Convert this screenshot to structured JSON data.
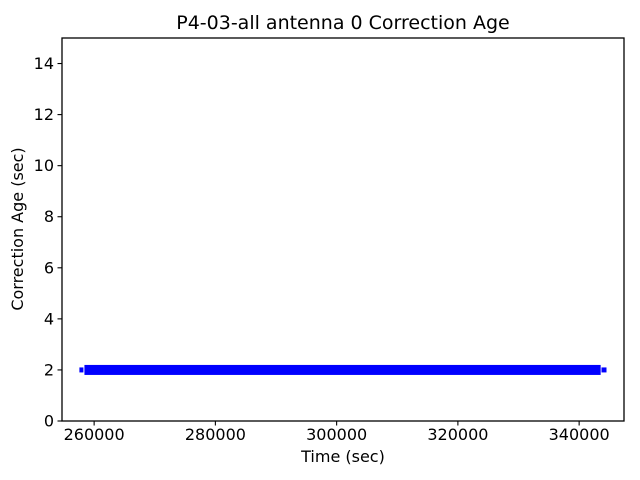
{
  "chart_data": {
    "type": "line",
    "title": "P4-03-all antenna 0 Correction Age",
    "xlabel": "Time (sec)",
    "ylabel": "Correction Age (sec)",
    "xlim": [
      254700,
      347400
    ],
    "ylim": [
      0,
      15
    ],
    "x_ticks": [
      260000,
      280000,
      300000,
      320000,
      340000
    ],
    "x_tick_labels": [
      "260000",
      "280000",
      "300000",
      "320000",
      "340000"
    ],
    "y_ticks": [
      0,
      2,
      4,
      6,
      8,
      10,
      12,
      14
    ],
    "y_tick_labels": [
      "0",
      "2",
      "4",
      "6",
      "8",
      "10",
      "12",
      "14"
    ],
    "grid": false,
    "legend": false,
    "background_color": "#ffffff",
    "axis_color": "#000000",
    "series": [
      {
        "name": "correction-age",
        "color": "#0000ff",
        "description": "dense time-series samples at a constant correction age of ~2 sec forming a solid horizontal band",
        "y_value": 2,
        "y_spread": 0.2,
        "x_start": 258400,
        "x_end": 343550,
        "start_cap_x": 257900,
        "end_cap_x": 344100
      }
    ]
  }
}
